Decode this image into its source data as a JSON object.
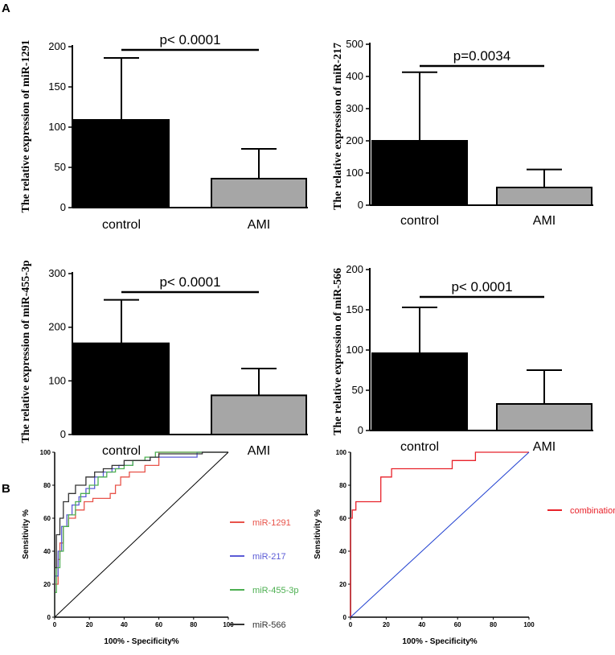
{
  "panel_labels": [
    "A",
    "B"
  ],
  "chart_data": [
    {
      "type": "bar",
      "ylabel": "The relative expression of miR-1291",
      "categories": [
        "control",
        "AMI"
      ],
      "values": [
        109,
        36
      ],
      "errors": [
        77,
        37
      ],
      "colors": [
        "#000000",
        "#a6a6a6"
      ],
      "ylim": [
        0,
        200
      ],
      "yticks": [
        0,
        50,
        100,
        150,
        200
      ],
      "pvalue": "p< 0.0001"
    },
    {
      "type": "bar",
      "ylabel": "The relative expression of miR-217",
      "categories": [
        "control",
        "AMI"
      ],
      "values": [
        200,
        55
      ],
      "errors": [
        213,
        56
      ],
      "colors": [
        "#000000",
        "#a6a6a6"
      ],
      "ylim": [
        0,
        500
      ],
      "yticks": [
        0,
        100,
        200,
        300,
        400,
        500
      ],
      "pvalue": "p=0.0034"
    },
    {
      "type": "bar",
      "ylabel": "The relative expression of miR-455-3p",
      "categories": [
        "control",
        "AMI"
      ],
      "values": [
        170,
        73
      ],
      "errors": [
        81,
        50
      ],
      "colors": [
        "#000000",
        "#a6a6a6"
      ],
      "ylim": [
        0,
        300
      ],
      "yticks": [
        0,
        100,
        200,
        300
      ],
      "pvalue": "p< 0.0001"
    },
    {
      "type": "bar",
      "ylabel": "The relative expression of miR-566",
      "categories": [
        "control",
        "AMI"
      ],
      "values": [
        96,
        33
      ],
      "errors": [
        57,
        42
      ],
      "colors": [
        "#000000",
        "#a6a6a6"
      ],
      "ylim": [
        0,
        200
      ],
      "yticks": [
        0,
        50,
        100,
        150,
        200
      ],
      "pvalue": "p< 0.0001"
    },
    {
      "type": "line",
      "xlabel": "100% - Specificity%",
      "ylabel": "Sensitivity %",
      "xlim": [
        0,
        100
      ],
      "ylim": [
        0,
        100
      ],
      "ticks": [
        0,
        20,
        40,
        60,
        80,
        100
      ],
      "series": [
        {
          "name": "miR-1291",
          "color": "#e8534a",
          "x": [
            0,
            0,
            2,
            2,
            3,
            3,
            5,
            5,
            8,
            8,
            12,
            12,
            17,
            17,
            22,
            22,
            32,
            32,
            35,
            35,
            38,
            38,
            43,
            43,
            52,
            52,
            60,
            60,
            100
          ],
          "y": [
            0,
            20,
            20,
            35,
            35,
            45,
            45,
            55,
            55,
            60,
            60,
            65,
            65,
            70,
            70,
            72,
            72,
            75,
            75,
            80,
            80,
            85,
            85,
            88,
            88,
            92,
            92,
            100,
            100
          ]
        },
        {
          "name": "miR-217",
          "color": "#5b5bd6",
          "x": [
            0,
            0,
            2,
            2,
            4,
            4,
            7,
            7,
            10,
            10,
            14,
            14,
            18,
            18,
            23,
            23,
            28,
            28,
            33,
            33,
            37,
            37,
            45,
            45,
            55,
            55,
            82,
            82,
            100
          ],
          "y": [
            0,
            25,
            25,
            40,
            40,
            55,
            55,
            62,
            62,
            68,
            68,
            73,
            73,
            78,
            78,
            85,
            85,
            88,
            88,
            90,
            90,
            92,
            92,
            95,
            95,
            97,
            97,
            100,
            100
          ]
        },
        {
          "name": "miR-455-3p",
          "color": "#4caf50",
          "x": [
            0,
            0,
            1,
            1,
            3,
            3,
            5,
            5,
            8,
            8,
            12,
            12,
            15,
            15,
            20,
            20,
            25,
            25,
            30,
            30,
            35,
            35,
            40,
            40,
            45,
            45,
            52,
            52,
            58,
            58,
            100
          ],
          "y": [
            0,
            15,
            15,
            30,
            30,
            40,
            40,
            55,
            55,
            62,
            62,
            70,
            70,
            75,
            75,
            80,
            80,
            85,
            85,
            88,
            88,
            90,
            90,
            92,
            92,
            95,
            95,
            97,
            97,
            100,
            100
          ]
        },
        {
          "name": "miR-566",
          "color": "#333333",
          "x": [
            0,
            0,
            1,
            1,
            3,
            3,
            5,
            5,
            8,
            8,
            12,
            12,
            18,
            18,
            23,
            23,
            28,
            28,
            33,
            33,
            40,
            40,
            55,
            55,
            60,
            60,
            85,
            85,
            100
          ],
          "y": [
            0,
            30,
            30,
            50,
            50,
            60,
            60,
            70,
            70,
            75,
            75,
            80,
            80,
            85,
            85,
            88,
            88,
            90,
            90,
            92,
            92,
            95,
            95,
            97,
            97,
            99,
            99,
            100,
            100
          ]
        },
        {
          "name": "",
          "color": "#000000",
          "x": [
            0,
            100
          ],
          "y": [
            0,
            100
          ]
        }
      ]
    },
    {
      "type": "line",
      "xlabel": "100% - Specificity%",
      "ylabel": "Sensitivity %",
      "xlim": [
        0,
        100
      ],
      "ylim": [
        0,
        100
      ],
      "ticks": [
        0,
        20,
        40,
        60,
        80,
        100
      ],
      "series": [
        {
          "name": "combination",
          "color": "#e8222a",
          "x": [
            0,
            0,
            1,
            1,
            3,
            3,
            17,
            17,
            23,
            23,
            57,
            57,
            70,
            70,
            100
          ],
          "y": [
            0,
            60,
            60,
            65,
            65,
            70,
            70,
            85,
            85,
            90,
            90,
            95,
            95,
            100,
            100
          ]
        },
        {
          "name": "",
          "color": "#1f3fd0",
          "x": [
            0,
            100
          ],
          "y": [
            0,
            100
          ]
        }
      ]
    }
  ]
}
